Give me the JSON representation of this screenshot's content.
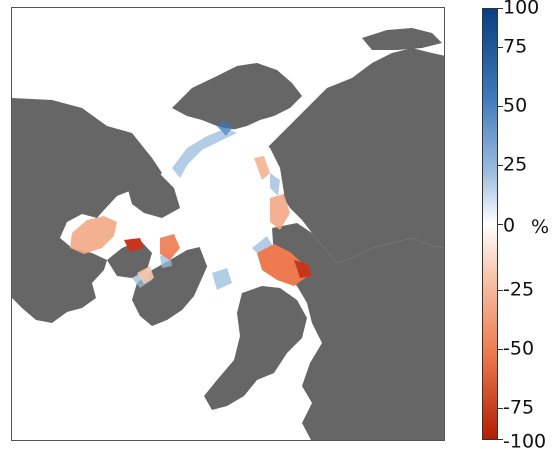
{
  "colorbar": {
    "ticks": [
      "100",
      "75",
      "50",
      "25",
      "0",
      "-25",
      "-50",
      "-75",
      "-100"
    ],
    "unit": "%",
    "colors": {
      "max": "#0b3d82",
      "mid": "#ffffff",
      "min": "#b21e05"
    }
  },
  "map": {
    "projection": "north-polar-stereographic",
    "land_color": "#666666",
    "ocean_color": "#ffffff",
    "increase_color": "#4a7fc0",
    "decrease_color": "#e8673c"
  }
}
